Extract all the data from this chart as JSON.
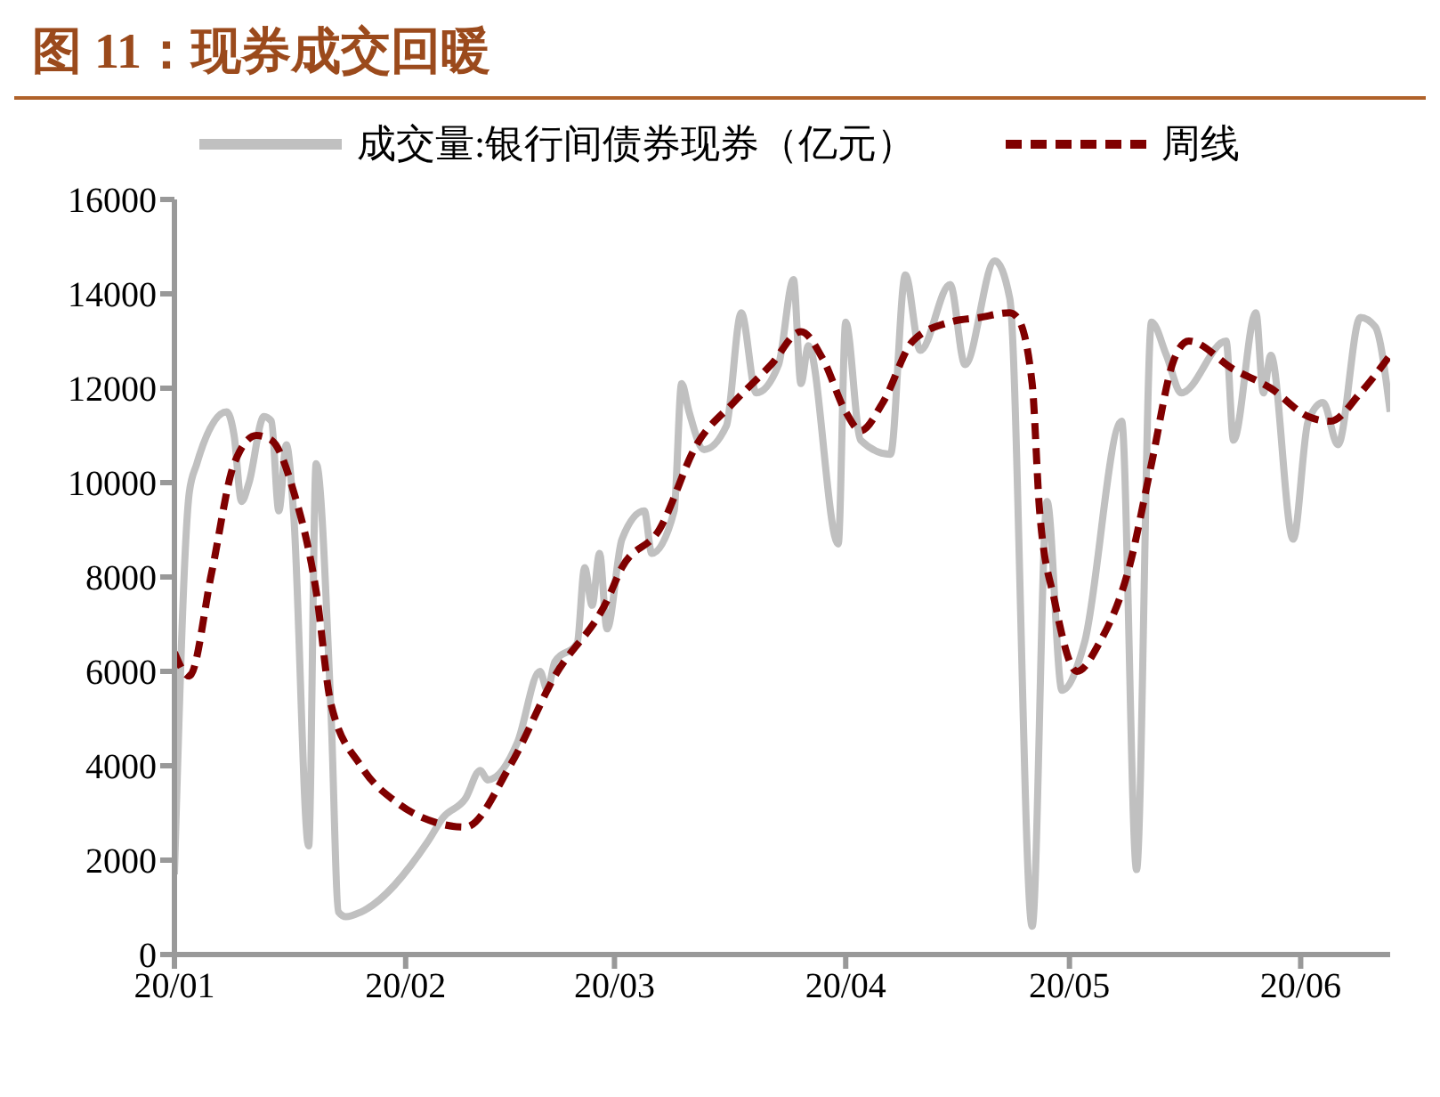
{
  "chart_data": {
    "type": "line",
    "title": "图 11：现券成交回暖",
    "legend": "top",
    "marker": "none",
    "xlim": [
      "--01-01",
      "--06-13"
    ],
    "xticks": [
      {
        "value": "--01-01",
        "label": "20/01"
      },
      {
        "value": "--02-01",
        "label": "20/02"
      },
      {
        "value": "--03-01",
        "label": "20/03"
      },
      {
        "value": "--04-01",
        "label": "20/04"
      },
      {
        "value": "--05-01",
        "label": "20/05"
      },
      {
        "value": "--06-01",
        "label": "20/06"
      }
    ],
    "ylim": [
      0,
      16000
    ],
    "yticks": [
      0,
      2000,
      4000,
      6000,
      8000,
      10000,
      12000,
      14000,
      16000
    ],
    "series": [
      {
        "name": "成交量:银行间债券现券（亿元）",
        "color": "#c0c0c0",
        "line_style": "solid",
        "x": [
          "--01-01",
          "--01-03",
          "--01-04",
          "--01-08",
          "--01-09",
          "--01-10",
          "--01-11",
          "--01-13",
          "--01-14",
          "--01-15",
          "--01-16",
          "--01-17",
          "--01-19",
          "--01-20",
          "--01-22",
          "--01-23",
          "--01-24",
          "--01-26",
          "--02-04",
          "--02-06",
          "--02-09",
          "--02-11",
          "--02-12",
          "--02-16",
          "--02-19",
          "--02-20",
          "--02-21",
          "--02-24",
          "--02-25",
          "--02-26",
          "--02-27",
          "--02-28",
          "--03-02",
          "--03-05",
          "--03-06",
          "--03-09",
          "--03-10",
          "--03-11",
          "--03-13",
          "--03-16",
          "--03-18",
          "--03-20",
          "--03-23",
          "--03-25",
          "--03-26",
          "--03-27",
          "--03-31",
          "--04-01",
          "--04-03",
          "--04-07",
          "--04-09",
          "--04-11",
          "--04-15",
          "--04-17",
          "--04-21",
          "--04-23",
          "--04-26",
          "--04-28",
          "--04-30",
          "--05-03",
          "--05-08",
          "--05-10",
          "--05-12",
          "--05-14",
          "--05-16",
          "--05-22",
          "--05-23",
          "--05-26",
          "--05-27",
          "--05-28",
          "--05-31",
          "--06-02",
          "--06-04",
          "--06-06",
          "--06-09",
          "--06-11",
          "--06-13"
        ],
        "values": [
          1700,
          9800,
          10400,
          11500,
          11000,
          9600,
          10000,
          11400,
          11300,
          9400,
          10800,
          9300,
          2300,
          10400,
          5100,
          900,
          800,
          900,
          2400,
          2900,
          3300,
          3900,
          3700,
          4500,
          6000,
          5600,
          6200,
          6600,
          8200,
          7400,
          8500,
          6900,
          8800,
          9400,
          8500,
          9400,
          12100,
          11500,
          10700,
          11200,
          13600,
          11900,
          12500,
          14300,
          12100,
          12900,
          8700,
          13400,
          10900,
          10600,
          14400,
          12800,
          14200,
          12500,
          14700,
          13900,
          600,
          9600,
          5600,
          6600,
          11300,
          1800,
          13400,
          12700,
          11900,
          13000,
          10900,
          13600,
          11900,
          12700,
          8800,
          11300,
          11700,
          10800,
          13500,
          13300,
          11500
        ]
      },
      {
        "name": "周线",
        "color": "#800000",
        "line_style": "dashed",
        "x": [
          "--01-01",
          "--01-03",
          "--01-06",
          "--01-09",
          "--01-12",
          "--01-14",
          "--01-17",
          "--01-20",
          "--01-22",
          "--01-26",
          "--01-31",
          "--02-05",
          "--02-09",
          "--02-15",
          "--02-21",
          "--02-28",
          "--03-02",
          "--03-07",
          "--03-12",
          "--03-17",
          "--03-22",
          "--03-26",
          "--03-29",
          "--04-01",
          "--04-03",
          "--04-06",
          "--04-10",
          "--04-15",
          "--04-19",
          "--04-23",
          "--04-24",
          "--04-26",
          "--04-27",
          "--04-29",
          "--05-02",
          "--05-05",
          "--05-09",
          "--05-12",
          "--05-15",
          "--05-17",
          "--05-23",
          "--05-28",
          "--06-02",
          "--06-05",
          "--06-09",
          "--06-13"
        ],
        "values": [
          6400,
          5900,
          8100,
          10400,
          11000,
          10900,
          9800,
          7700,
          5300,
          4000,
          3200,
          2800,
          2700,
          4000,
          5900,
          7500,
          8200,
          9000,
          10800,
          11700,
          12500,
          13200,
          12600,
          11500,
          11100,
          11700,
          13000,
          13400,
          13500,
          13600,
          13500,
          12100,
          9400,
          7500,
          6000,
          6600,
          8200,
          10400,
          12600,
          13000,
          12400,
          12000,
          11400,
          11300,
          11900,
          12700
        ]
      }
    ]
  }
}
